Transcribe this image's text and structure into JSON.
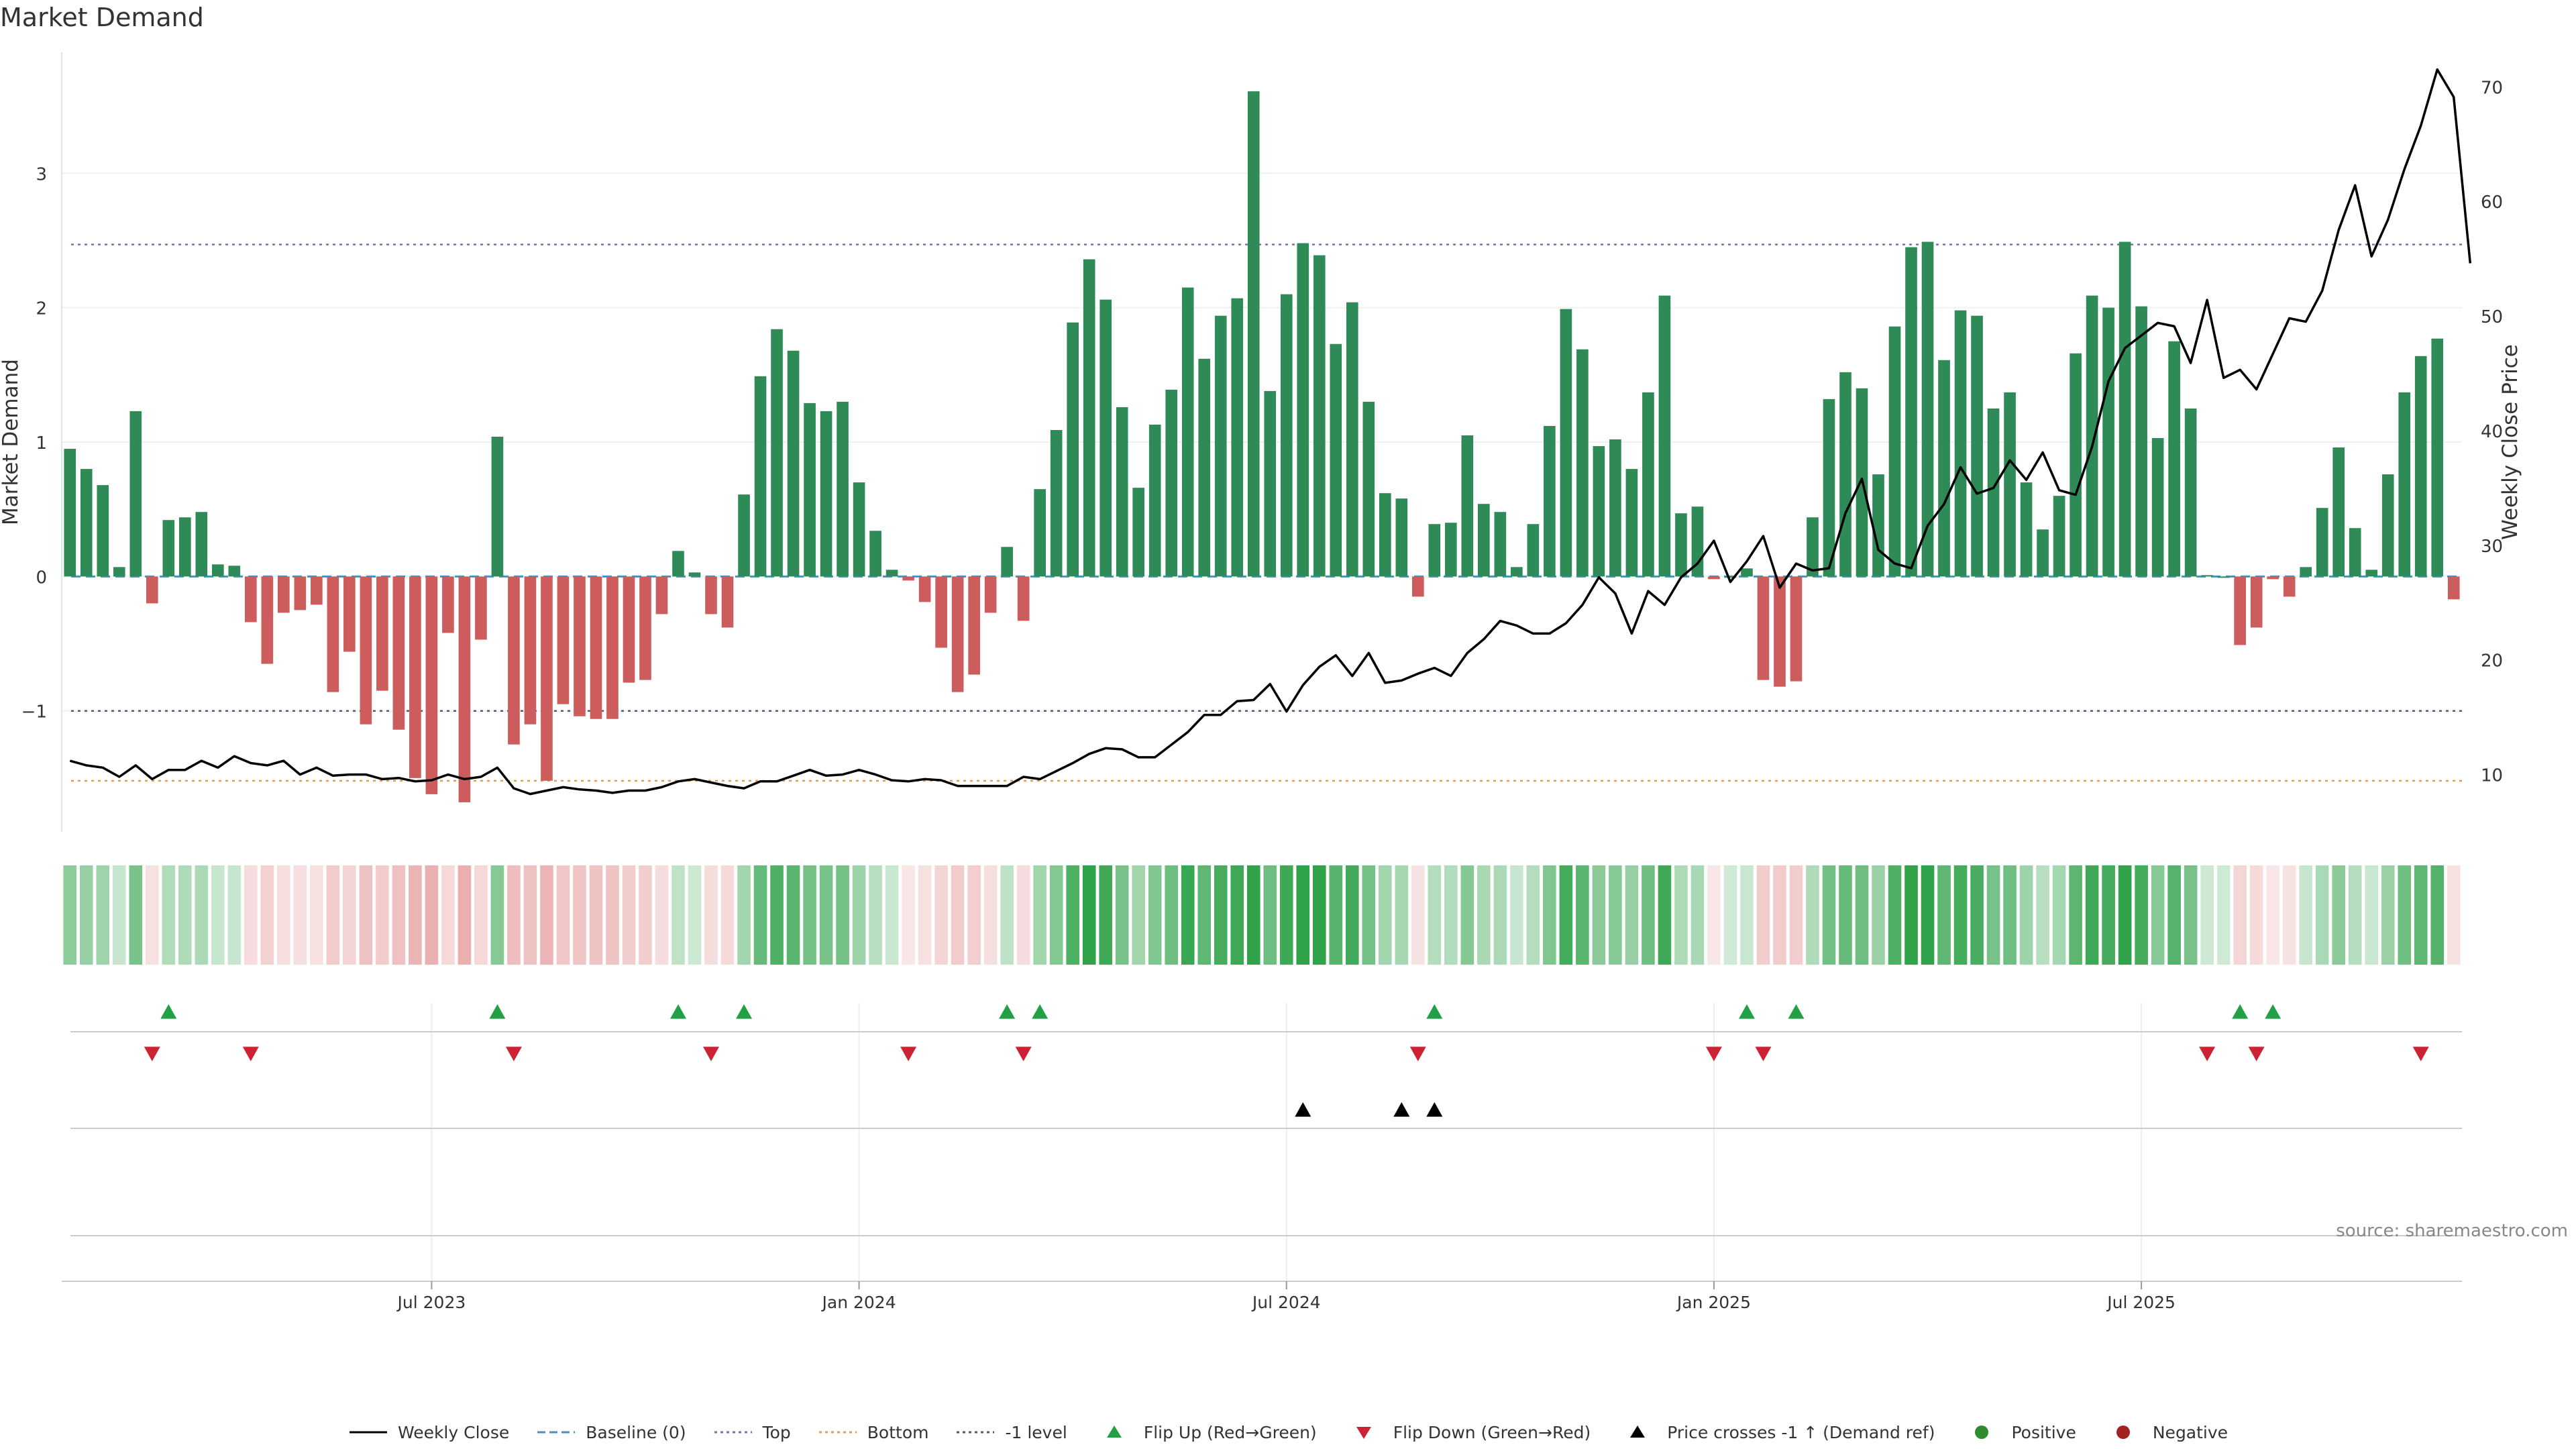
{
  "title": "Market Demand",
  "source_note": "source: sharemaestro.com",
  "colors": {
    "positive": "#2e8b57",
    "negative": "#cd5c5c",
    "price_line": "#000000",
    "top_line": "#7b6fb3",
    "bottom_line": "#e0a050",
    "minus1_line": "#555577",
    "baseline": "#4a90c2",
    "flip_up": "#22a045",
    "flip_down": "#cc2233",
    "cross": "#000000",
    "positive_dot": "#2e8b2e",
    "negative_dot": "#a32222"
  },
  "legend": [
    {
      "key": "weekly_close",
      "label": "Weekly Close",
      "symbol": "solid-line"
    },
    {
      "key": "baseline",
      "label": "Baseline (0)",
      "symbol": "dashed-line"
    },
    {
      "key": "top",
      "label": "Top",
      "symbol": "dotted-line"
    },
    {
      "key": "bottom",
      "label": "Bottom",
      "symbol": "dotted-line"
    },
    {
      "key": "minus1",
      "label": "-1 level",
      "symbol": "dotted-line"
    },
    {
      "key": "flip_up",
      "label": "Flip Up (Red→Green)",
      "symbol": "triangle-up"
    },
    {
      "key": "flip_down",
      "label": "Flip Down (Green→Red)",
      "symbol": "triangle-down"
    },
    {
      "key": "cross",
      "label": "Price crosses -1 ↑ (Demand ref)",
      "symbol": "triangle-up"
    },
    {
      "key": "positive_dot",
      "label": "Positive",
      "symbol": "dot"
    },
    {
      "key": "negative_dot",
      "label": "Negative",
      "symbol": "dot"
    }
  ],
  "chart_data": {
    "type": "bar",
    "title": "Market Demand",
    "ylabel": "Market Demand",
    "y2label": "Weekly Close Price",
    "ylim": [
      -1.9,
      3.9
    ],
    "y2lim": [
      5.0,
      73.0
    ],
    "y_ticks": [
      -1,
      0,
      1,
      2,
      3
    ],
    "y2_ticks": [
      10,
      20,
      30,
      40,
      50,
      60,
      70
    ],
    "x_tick_indices": [
      22,
      48,
      74,
      100,
      126
    ],
    "x_tick_labels": [
      "Jul 2023",
      "Jan 2024",
      "Jul 2024",
      "Jan 2025",
      "Jul 2025"
    ],
    "reference_lines": {
      "top": 2.47,
      "bottom": -1.52,
      "minus1": -1.0,
      "baseline": 0
    },
    "demand": [
      0.95,
      0.8,
      0.68,
      0.07,
      1.23,
      -0.2,
      0.42,
      0.44,
      0.48,
      0.09,
      0.08,
      -0.34,
      -0.65,
      -0.27,
      -0.25,
      -0.21,
      -0.86,
      -0.56,
      -1.1,
      -0.85,
      -1.14,
      -1.5,
      -1.62,
      -0.42,
      -1.68,
      -0.47,
      1.04,
      -1.25,
      -1.1,
      -1.52,
      -0.95,
      -1.04,
      -1.06,
      -1.06,
      -0.79,
      -0.77,
      -0.28,
      0.19,
      0.03,
      -0.28,
      -0.38,
      0.61,
      1.49,
      1.84,
      1.68,
      1.29,
      1.23,
      1.3,
      0.7,
      0.34,
      0.05,
      -0.03,
      -0.19,
      -0.53,
      -0.86,
      -0.73,
      -0.27,
      0.22,
      -0.33,
      0.65,
      1.09,
      1.89,
      2.36,
      2.06,
      1.26,
      0.66,
      1.13,
      1.39,
      2.15,
      1.62,
      1.94,
      2.07,
      3.61,
      1.38,
      2.1,
      2.48,
      2.39,
      1.73,
      2.04,
      1.3,
      0.62,
      0.58,
      -0.15,
      0.39,
      0.4,
      1.05,
      0.54,
      0.48,
      0.07,
      0.39,
      1.12,
      1.99,
      1.69,
      0.97,
      1.02,
      0.8,
      1.37,
      2.09,
      0.47,
      0.52,
      -0.02,
      0.0,
      0.06,
      -0.77,
      -0.82,
      -0.78,
      0.44,
      1.32,
      1.52,
      1.4,
      0.76,
      1.86,
      2.45,
      2.49,
      1.61,
      1.98,
      1.94,
      1.25,
      1.37,
      0.7,
      0.35,
      0.6,
      1.66,
      2.09,
      2.0,
      2.49,
      2.01,
      1.03,
      1.75,
      1.25,
      0.01,
      0.0,
      -0.51,
      -0.38,
      -0.02,
      -0.15,
      0.07,
      0.51,
      0.96,
      0.36,
      0.05,
      0.76,
      1.37,
      1.64,
      1.77,
      -0.17
    ],
    "price": [
      11.2,
      10.8,
      10.6,
      9.8,
      10.8,
      9.6,
      10.4,
      10.4,
      11.2,
      10.6,
      11.6,
      11.0,
      10.8,
      11.2,
      10.0,
      10.6,
      9.9,
      10.0,
      10.0,
      9.6,
      9.7,
      9.4,
      9.5,
      10.0,
      9.6,
      9.8,
      10.6,
      8.8,
      8.3,
      8.6,
      8.9,
      8.7,
      8.6,
      8.4,
      8.6,
      8.6,
      8.9,
      9.4,
      9.6,
      9.3,
      9.0,
      8.8,
      9.4,
      9.4,
      9.9,
      10.4,
      9.9,
      10.0,
      10.4,
      10.0,
      9.5,
      9.4,
      9.6,
      9.5,
      9.0,
      9.0,
      9.0,
      9.0,
      9.8,
      9.6,
      10.3,
      11.0,
      11.8,
      12.3,
      12.2,
      11.5,
      11.5,
      12.6,
      13.7,
      15.2,
      15.2,
      16.4,
      16.5,
      17.9,
      15.5,
      17.8,
      19.4,
      20.4,
      18.6,
      20.6,
      18.0,
      18.2,
      18.8,
      19.3,
      18.6,
      20.6,
      21.8,
      23.4,
      23.0,
      22.3,
      22.3,
      23.2,
      24.8,
      27.2,
      25.8,
      22.3,
      26.0,
      24.8,
      27.2,
      28.4,
      30.4,
      26.8,
      28.6,
      30.8,
      26.3,
      28.4,
      27.8,
      28.0,
      32.8,
      35.8,
      29.6,
      28.4,
      28.0,
      31.7,
      33.6,
      36.8,
      34.5,
      35.0,
      37.4,
      35.7,
      38.1,
      34.8,
      34.4,
      38.6,
      44.3,
      47.2,
      48.3,
      49.4,
      49.1,
      45.9,
      51.4,
      44.6,
      45.3,
      43.6,
      46.7,
      49.8,
      49.5,
      52.2,
      57.5,
      61.4,
      55.2,
      58.4,
      62.8,
      66.6,
      71.5,
      69.1,
      54.6
    ],
    "flip_up_indices": [
      6,
      26,
      37,
      41,
      57,
      59,
      83,
      102,
      105,
      132,
      134
    ],
    "flip_down_indices": [
      5,
      11,
      27,
      39,
      51,
      58,
      82,
      100,
      103,
      130,
      133,
      143
    ],
    "cross_indices": [
      75,
      81,
      83
    ]
  }
}
